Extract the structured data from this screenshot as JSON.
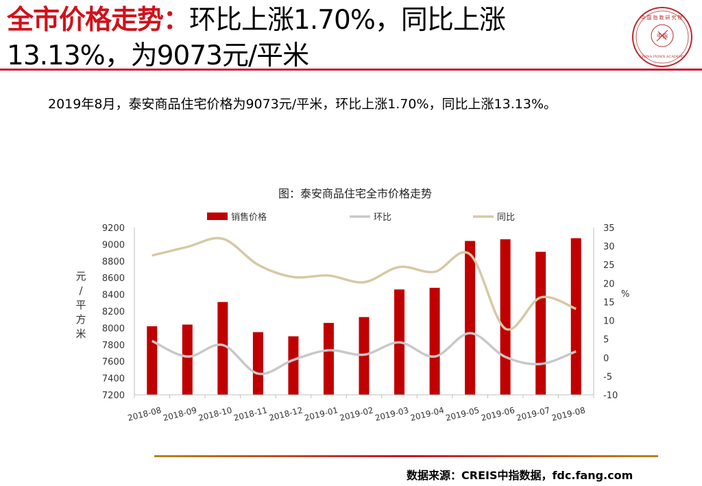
{
  "header": {
    "title_highlight": "全市价格走势：",
    "title_line1_rest": "环比上涨1.70%，同比上涨",
    "title_line2": "13.13%，为9073元/平米"
  },
  "summary": "2019年8月，泰安商品住宅价格为9073元/平米，环比上涨1.70%，同比上涨13.13%。",
  "logo": {
    "outer_text": "中国指数研究院",
    "inner_text": "中指",
    "english": "CHINA INDEX ACADEMY"
  },
  "source": "数据来源：CREIS中指数据，fdc.fang.com",
  "colors": {
    "accent": "#d0121b",
    "bar": "#c00000",
    "mom_line": "#c8c8c8",
    "yoy_line": "#d6c9a4"
  },
  "chart_data": {
    "type": "bar",
    "title": "图：泰安商品住宅全市价格走势",
    "categories": [
      "2018-08",
      "2018-09",
      "2018-10",
      "2018-11",
      "2018-12",
      "2019-01",
      "2019-02",
      "2019-03",
      "2019-04",
      "2019-05",
      "2019-06",
      "2019-07",
      "2019-08"
    ],
    "series": [
      {
        "name": "销售价格",
        "type": "bar",
        "axis": "left",
        "values": [
          8020,
          8040,
          8310,
          7950,
          7900,
          8060,
          8130,
          8460,
          8480,
          9040,
          9060,
          8910,
          9073
        ]
      },
      {
        "name": "环比",
        "type": "line",
        "axis": "right",
        "values": [
          4.5,
          0.3,
          3.4,
          -4.3,
          -0.6,
          2.0,
          0.8,
          4.1,
          0.3,
          6.6,
          0.2,
          -1.7,
          1.7
        ]
      },
      {
        "name": "同比",
        "type": "line",
        "axis": "right",
        "values": [
          27.5,
          29.8,
          32.0,
          25.0,
          21.7,
          22.1,
          20.3,
          24.4,
          23.1,
          27.8,
          7.8,
          16.2,
          13.13
        ]
      }
    ],
    "ylabel": "元/平方米",
    "ylabel_right": "%",
    "ylim": [
      7200,
      9200
    ],
    "yticks": [
      7200,
      7400,
      7600,
      7800,
      8000,
      8200,
      8400,
      8600,
      8800,
      9000,
      9200
    ],
    "ylim_right": [
      -10,
      35
    ],
    "yticks_right": [
      -10,
      -5,
      0,
      5,
      10,
      15,
      20,
      25,
      30,
      35
    ],
    "legend": "top"
  }
}
